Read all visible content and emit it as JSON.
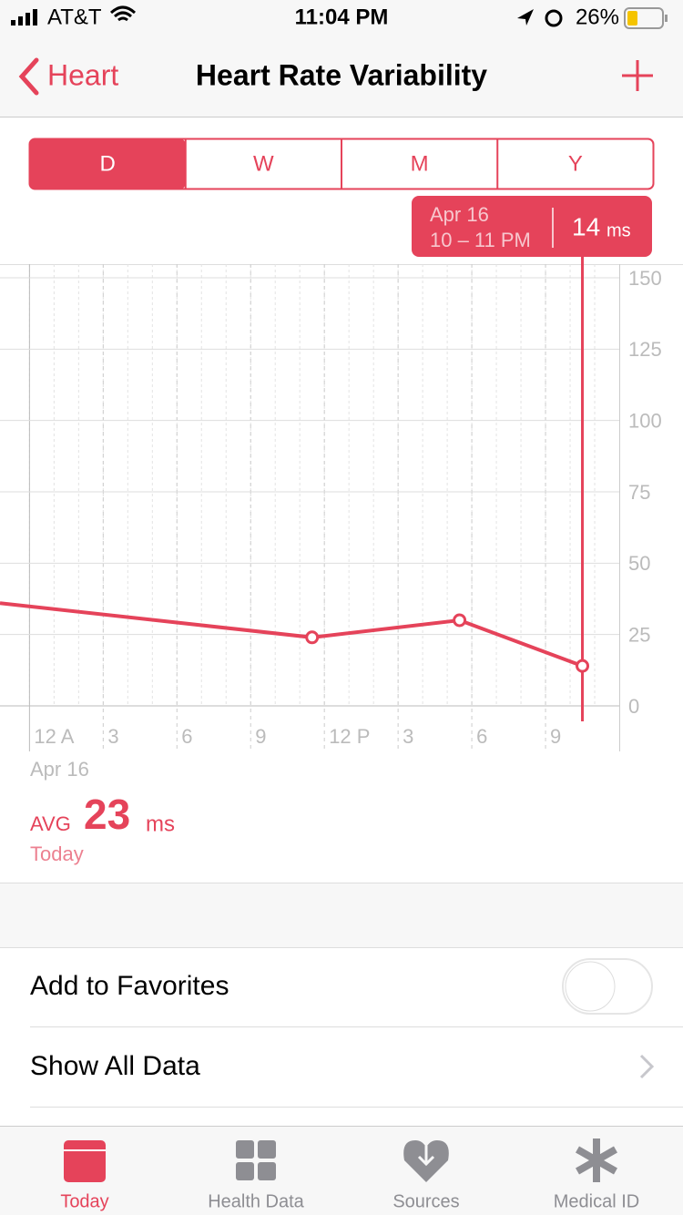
{
  "status_bar": {
    "carrier": "AT&T",
    "time": "11:04 PM",
    "battery": "26%"
  },
  "nav": {
    "back": "Heart",
    "title": "Heart Rate Variability"
  },
  "segments": [
    "D",
    "W",
    "M",
    "Y"
  ],
  "chart_data": {
    "type": "line",
    "x": [
      -1.2,
      11.5,
      17.5,
      22.5
    ],
    "series": [
      {
        "name": "Heart Rate Variability",
        "color": "#e5435a",
        "values": [
          36,
          24,
          30,
          14
        ]
      }
    ],
    "xlim": [
      -1.2,
      24
    ],
    "xticks": [
      {
        "value": 0,
        "label": "12 A"
      },
      3,
      6,
      9,
      {
        "value": 12,
        "label": "12 P"
      },
      {
        "value": 15,
        "label": "3"
      },
      {
        "value": 18,
        "label": "6"
      },
      {
        "value": 21,
        "label": "9"
      }
    ],
    "ylim": [
      0,
      150
    ],
    "yticks": [
      0,
      25,
      50,
      75,
      100,
      125,
      150
    ],
    "grid": true,
    "x_label": "Apr 16",
    "tooltip": {
      "x": 22.5,
      "date": "Apr 16",
      "range": "10 – 11 PM",
      "value": 14,
      "unit": "ms"
    }
  },
  "summary": {
    "label": "AVG",
    "value": 23,
    "unit": "ms",
    "period": "Today"
  },
  "list": [
    "Add to Favorites",
    "Show All Data"
  ],
  "tabs": [
    "Today",
    "Health Data",
    "Sources",
    "Medical ID"
  ]
}
